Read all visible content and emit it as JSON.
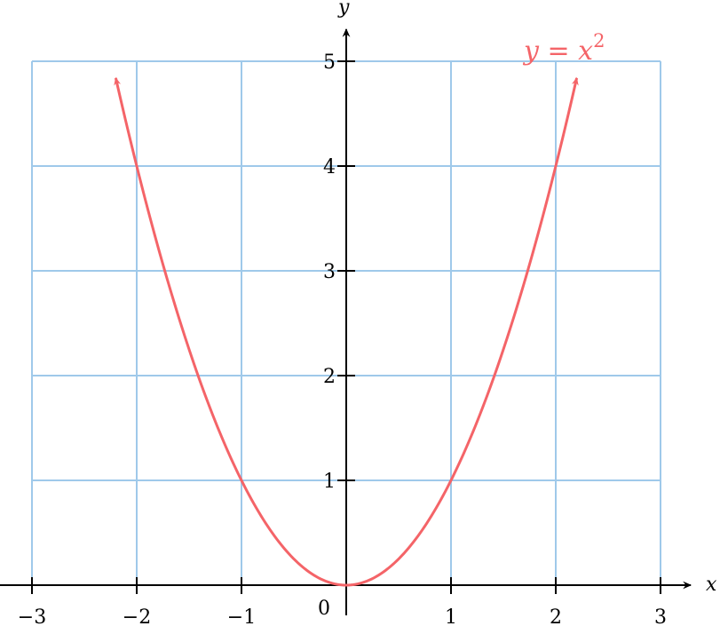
{
  "chart_data": {
    "type": "line",
    "title": "",
    "xlabel": "x",
    "ylabel": "y",
    "xlim": [
      -3,
      3
    ],
    "ylim": [
      0,
      5
    ],
    "grid": true,
    "x_ticks": [
      -3,
      -2,
      -1,
      1,
      2,
      3
    ],
    "x_tick_labels": [
      "−3",
      "−2",
      "−1",
      "1",
      "2",
      "3"
    ],
    "y_ticks": [
      1,
      2,
      3,
      4,
      5
    ],
    "y_tick_labels": [
      "1",
      "2",
      "3",
      "4",
      "5"
    ],
    "origin_label": "0",
    "series": [
      {
        "name": "y = x²",
        "function": "x^2",
        "domain": [
          -2.2,
          2.2
        ],
        "arrows_at_ends": true,
        "color": "#f46468"
      }
    ],
    "annotation": {
      "text_base": "y = x",
      "text_sup": "2"
    },
    "colors": {
      "grid": "#9fc9ea",
      "axis": "#000000",
      "curve": "#f46468"
    }
  }
}
